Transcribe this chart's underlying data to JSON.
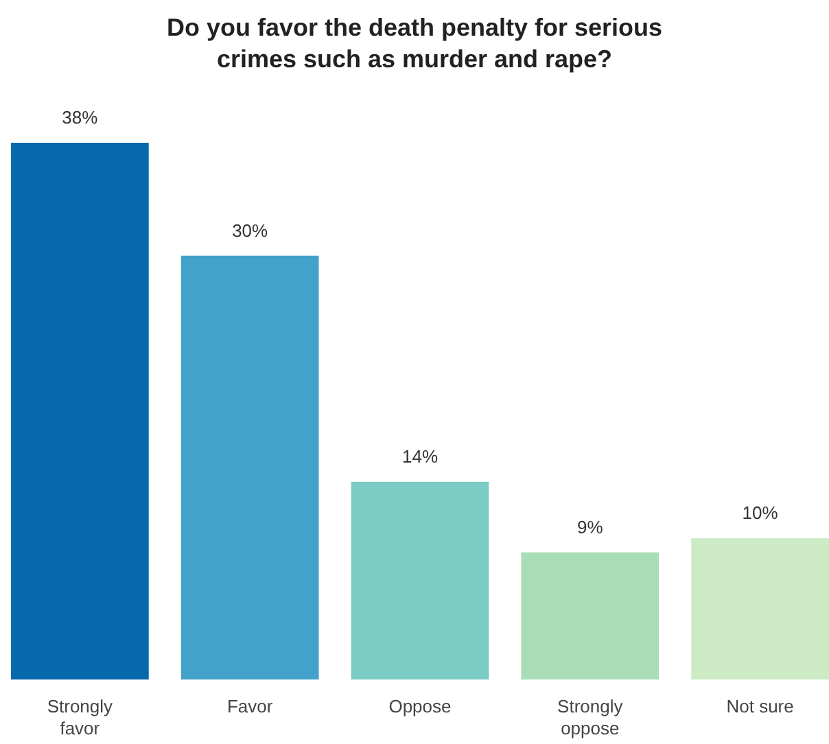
{
  "chart_data": {
    "type": "bar",
    "title": "Do you favor the death penalty for serious crimes such as murder and rape?",
    "categories": [
      "Strongly favor",
      "Favor",
      "Oppose",
      "Strongly oppose",
      "Not sure"
    ],
    "values": [
      38,
      30,
      14,
      9,
      10
    ],
    "colors": [
      "#0868ac",
      "#43a2ca",
      "#7bccc4",
      "#a8ddb5",
      "#ccebc5"
    ],
    "value_labels": [
      "38%",
      "30%",
      "14%",
      "9%",
      "10%"
    ],
    "grid": false
  }
}
